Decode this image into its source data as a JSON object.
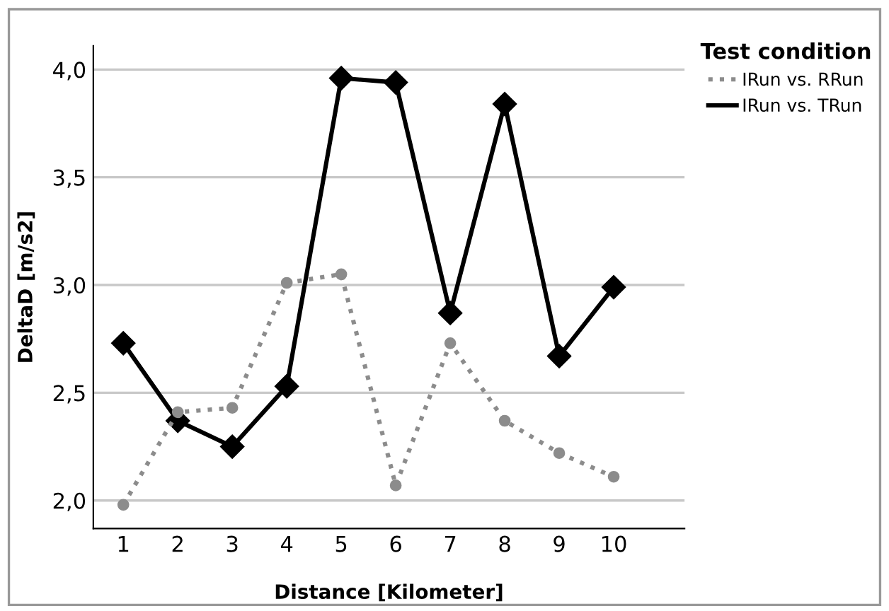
{
  "chart_data": {
    "type": "line",
    "xlabel": "Distance [Kilometer]",
    "ylabel": "DeltaD [m/s2]",
    "legend_title": "Test condition",
    "categories": [
      "1",
      "2",
      "3",
      "4",
      "5",
      "6",
      "7",
      "8",
      "9",
      "10"
    ],
    "series": [
      {
        "name": "IRun vs. RRun",
        "color": "#8c8c8c",
        "line_style": "dotted",
        "marker": "circle",
        "values": [
          1.98,
          2.41,
          2.43,
          3.01,
          3.05,
          2.07,
          2.73,
          2.37,
          2.22,
          2.11
        ]
      },
      {
        "name": "IRun vs. TRun",
        "color": "#000000",
        "line_style": "solid",
        "marker": "diamond",
        "values": [
          2.73,
          2.37,
          2.25,
          2.53,
          3.96,
          3.94,
          2.87,
          3.84,
          2.67,
          2.99
        ]
      }
    ],
    "ylim": [
      1.87,
      4.11
    ],
    "yticks": [
      {
        "value": 2.0,
        "label": "2,0"
      },
      {
        "value": 2.5,
        "label": "2,5"
      },
      {
        "value": 3.0,
        "label": "3,0"
      },
      {
        "value": 3.5,
        "label": "3,5"
      },
      {
        "value": 4.0,
        "label": "4,0"
      }
    ],
    "grid": "y",
    "legend": "top right"
  }
}
